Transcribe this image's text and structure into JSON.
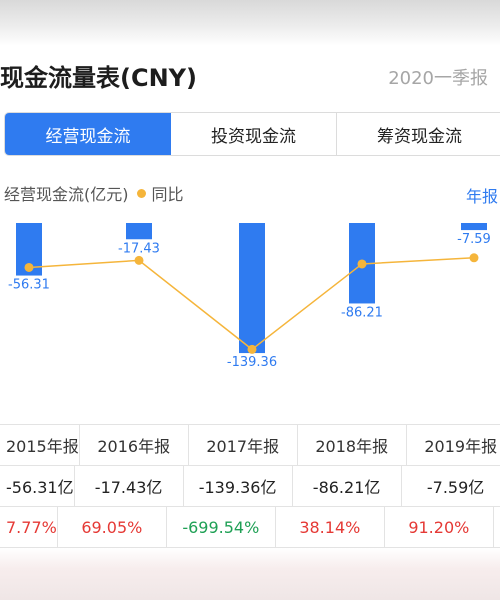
{
  "header": {
    "title": "现金流量表(CNY)",
    "period": "2020一季报"
  },
  "tabs": [
    {
      "label": "经营现金流",
      "active": true
    },
    {
      "label": "投资现金流",
      "active": false
    },
    {
      "label": "筹资现金流",
      "active": false
    }
  ],
  "legend": {
    "bar_label": "经营现金流(亿元)",
    "line_label": "同比",
    "annual_link": "年报"
  },
  "colors": {
    "accent": "#2f7bf0",
    "bar": "#2f7bf0",
    "line": "#f5b53b",
    "positive": "#e53935",
    "negative": "#1fa055"
  },
  "chart_data": {
    "type": "bar",
    "categories": [
      "2015年报",
      "2016年报",
      "2017年报",
      "2018年报",
      "2019年报"
    ],
    "series": [
      {
        "name": "经营现金流(亿元)",
        "type": "bar",
        "values": [
          -56.31,
          -17.43,
          -139.36,
          -86.21,
          -7.59
        ]
      },
      {
        "name": "同比",
        "type": "line",
        "values": [
          7.77,
          69.05,
          -699.54,
          38.14,
          91.2
        ]
      }
    ],
    "data_labels": [
      "-56.31",
      "-17.43",
      "-139.36",
      "-86.21",
      "-7.59"
    ],
    "ylim": [
      -150,
      0
    ],
    "yoy_ylim": [
      -800,
      150
    ],
    "legend_position": "top-left",
    "grid": false
  },
  "table": {
    "years": [
      "2015年报",
      "2016年报",
      "2017年报",
      "2018年报",
      "2019年报"
    ],
    "values": [
      "-56.31亿",
      "-17.43亿",
      "-139.36亿",
      "-86.21亿",
      "-7.59亿"
    ],
    "yoy": [
      "7.77%",
      "69.05%",
      "-699.54%",
      "38.14%",
      "91.20%"
    ]
  }
}
